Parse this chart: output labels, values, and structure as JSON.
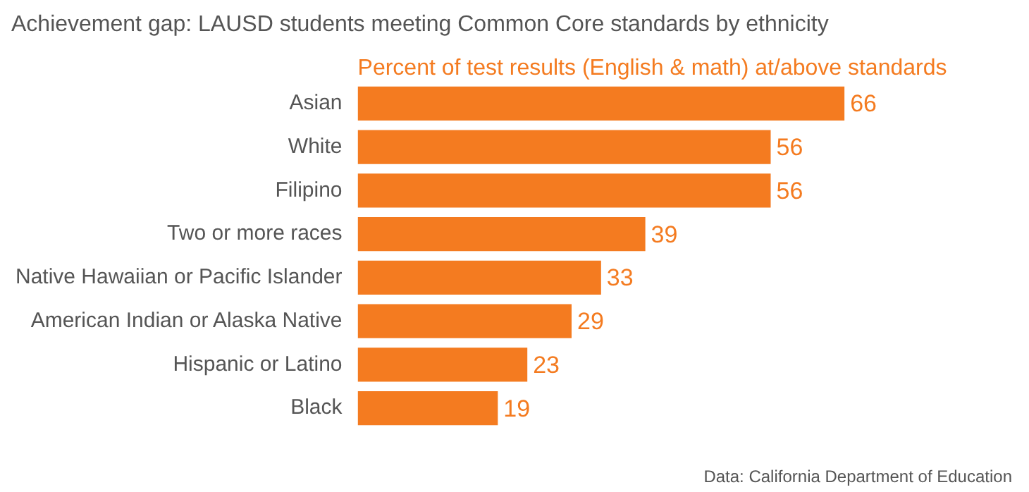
{
  "chart_data": {
    "type": "bar",
    "orientation": "horizontal",
    "title": "Achievement gap: LAUSD students meeting Common Core standards by ethnicity",
    "subtitle": "Percent of test results (English & math) at/above standards",
    "categories": [
      "Asian",
      "White",
      "Filipino",
      "Two or more races",
      "Native Hawaiian or Pacific Islander",
      "American Indian or Alaska Native",
      "Hispanic or Latino",
      "Black"
    ],
    "values": [
      66,
      56,
      56,
      39,
      33,
      29,
      23,
      19
    ],
    "color": "#f47b20",
    "data_labels": true,
    "legend": false,
    "tick_labels": "y",
    "annotations": [
      "Data: California Department of Education"
    ]
  }
}
